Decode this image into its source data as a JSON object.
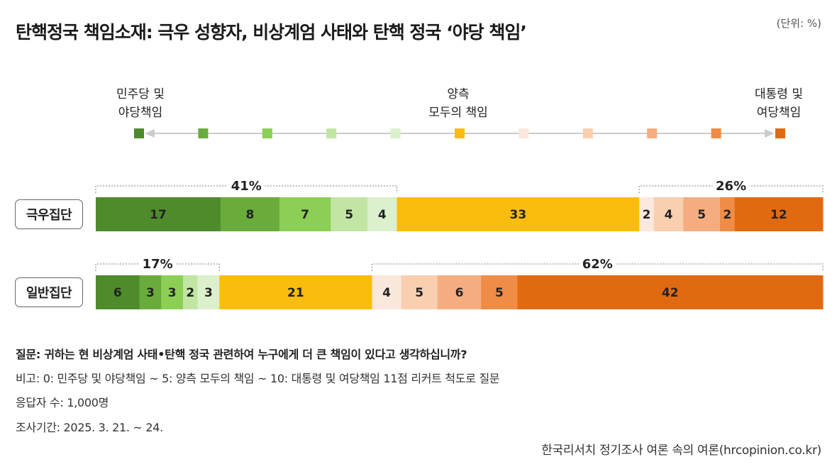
{
  "title": "탄핵정국 책임소재: 극우 성향자, 비상계엄 사태와 탄핵 정국 ‘야당 책임’",
  "unit": "(단위: %)",
  "scale": {
    "left_label": [
      "민주당 및",
      "야당책임"
    ],
    "mid_label": [
      "양측",
      "모두의 책임"
    ],
    "right_label": [
      "대통령 및",
      "여당책임"
    ]
  },
  "colors": {
    "scale_points": [
      "#4f8a2b",
      "#69ac3c",
      "#8ccf55",
      "#c1e6a3",
      "#dcf0cd",
      "#fbbd0d",
      "#fbe8dc",
      "#f9cfaf",
      "#f5ad80",
      "#ef8c45",
      "#e06a12"
    ],
    "arrow": "#cccccc"
  },
  "chart_data": {
    "type": "stacked_bar",
    "rows": [
      {
        "name": "극우집단",
        "segments": [
          17,
          8,
          7,
          5,
          4,
          33,
          2,
          4,
          5,
          2,
          12
        ],
        "left_total": "41%",
        "right_total": "26%"
      },
      {
        "name": "일반집단",
        "segments": [
          6,
          3,
          3,
          2,
          3,
          21,
          4,
          5,
          6,
          5,
          42
        ],
        "left_total": "17%",
        "right_total": "62%"
      }
    ],
    "xlim": [
      0,
      100
    ]
  },
  "notes": {
    "question": "질문: 귀하는 현 비상계엄 사태•탄핵 정국 관련하여 누구에게 더 큰 책임이 있다고 생각하십니까?",
    "remark": "비고: 0: 민주당 및 야당책임 ~ 5: 양측 모두의 책임 ~ 10: 대통령 및 여당책임 11점 리커트 척도로 질문",
    "respondents": "응답자 수: 1,000명",
    "period": "조사기간: 2025. 3. 21. ~ 24."
  },
  "source": "한국리서치 정기조사 여론 속의 여론(hrcopinion.co.kr)"
}
